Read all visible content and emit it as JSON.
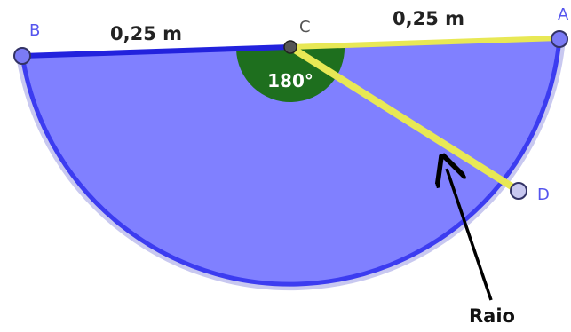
{
  "labels": {
    "point_b": "B",
    "point_c": "C",
    "point_a": "A",
    "point_d": "D",
    "length_left": "0,25 m",
    "length_right": "0,25 m",
    "angle": "180°",
    "radius_label": "Raio"
  },
  "colors": {
    "semicircle_fill": "#8080ff",
    "semicircle_outline": "#3c3cf0",
    "outline_halo": "#c8c8f0",
    "segment_bc": "#2222dd",
    "segment_ca": "#e8e855",
    "segment_cd": "#e8e855",
    "angle_sector": "#1e6f1e",
    "point_fill": "#7b7bf5",
    "point_stroke": "#333366",
    "center_point": "#555555",
    "arrow": "#000000",
    "label_text": "#222222"
  }
}
